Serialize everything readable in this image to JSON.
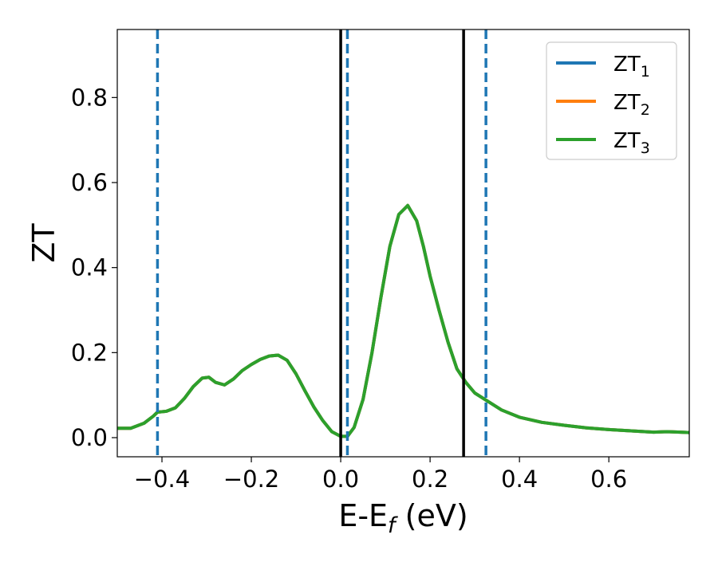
{
  "chart_data": {
    "type": "line",
    "title": "",
    "xlabel": "E-E",
    "xlabel_sub": "f",
    "xlabel_unit": "(eV)",
    "ylabel": "ZT",
    "xlim": [
      -0.5,
      0.78
    ],
    "ylim": [
      -0.045,
      0.96
    ],
    "grid": false,
    "legend_position": "top-right",
    "xticks": [
      -0.4,
      -0.2,
      0.0,
      0.2,
      0.4,
      0.6
    ],
    "xtick_labels": [
      "−0.4",
      "−0.2",
      "0.0",
      "0.2",
      "0.4",
      "0.6"
    ],
    "yticks": [
      0.0,
      0.2,
      0.4,
      0.6,
      0.8
    ],
    "ytick_labels": [
      "0.0",
      "0.2",
      "0.4",
      "0.6",
      "0.8"
    ],
    "x": [
      -0.5,
      -0.47,
      -0.44,
      -0.42,
      -0.41,
      -0.39,
      -0.37,
      -0.35,
      -0.33,
      -0.31,
      -0.295,
      -0.28,
      -0.26,
      -0.24,
      -0.22,
      -0.2,
      -0.18,
      -0.16,
      -0.14,
      -0.12,
      -0.1,
      -0.08,
      -0.06,
      -0.04,
      -0.02,
      0.0,
      0.015,
      0.03,
      0.05,
      0.07,
      0.09,
      0.11,
      0.13,
      0.15,
      0.17,
      0.185,
      0.2,
      0.22,
      0.24,
      0.26,
      0.28,
      0.3,
      0.33,
      0.36,
      0.4,
      0.45,
      0.5,
      0.55,
      0.6,
      0.65,
      0.7,
      0.73,
      0.76,
      0.78
    ],
    "series": [
      {
        "name": "ZT1",
        "color": "#1f77b4",
        "values": [
          0.022,
          0.022,
          0.034,
          0.05,
          0.06,
          0.062,
          0.07,
          0.092,
          0.12,
          0.14,
          0.142,
          0.13,
          0.124,
          0.138,
          0.158,
          0.172,
          0.184,
          0.192,
          0.194,
          0.182,
          0.15,
          0.11,
          0.072,
          0.04,
          0.014,
          0.003,
          0.003,
          0.024,
          0.09,
          0.2,
          0.33,
          0.45,
          0.525,
          0.546,
          0.51,
          0.45,
          0.38,
          0.3,
          0.225,
          0.162,
          0.13,
          0.105,
          0.085,
          0.065,
          0.048,
          0.036,
          0.029,
          0.023,
          0.019,
          0.016,
          0.013,
          0.014,
          0.013,
          0.012
        ]
      },
      {
        "name": "ZT2",
        "color": "#ff7f0e",
        "values": [
          0.022,
          0.022,
          0.034,
          0.05,
          0.06,
          0.062,
          0.07,
          0.092,
          0.12,
          0.14,
          0.142,
          0.13,
          0.124,
          0.138,
          0.158,
          0.172,
          0.184,
          0.192,
          0.194,
          0.182,
          0.15,
          0.11,
          0.072,
          0.04,
          0.014,
          0.003,
          0.003,
          0.024,
          0.09,
          0.2,
          0.33,
          0.45,
          0.525,
          0.546,
          0.51,
          0.45,
          0.38,
          0.3,
          0.225,
          0.162,
          0.13,
          0.105,
          0.085,
          0.065,
          0.048,
          0.036,
          0.029,
          0.023,
          0.019,
          0.016,
          0.013,
          0.014,
          0.013,
          0.012
        ]
      },
      {
        "name": "ZT3",
        "color": "#2ca02c",
        "values": [
          0.022,
          0.022,
          0.034,
          0.05,
          0.06,
          0.062,
          0.07,
          0.092,
          0.12,
          0.14,
          0.142,
          0.13,
          0.124,
          0.138,
          0.158,
          0.172,
          0.184,
          0.192,
          0.194,
          0.182,
          0.15,
          0.11,
          0.072,
          0.04,
          0.014,
          0.003,
          0.003,
          0.024,
          0.09,
          0.2,
          0.33,
          0.45,
          0.525,
          0.546,
          0.51,
          0.45,
          0.38,
          0.3,
          0.225,
          0.162,
          0.13,
          0.105,
          0.085,
          0.065,
          0.048,
          0.036,
          0.029,
          0.023,
          0.019,
          0.016,
          0.013,
          0.014,
          0.013,
          0.012
        ]
      }
    ],
    "legend": [
      {
        "label": "ZT",
        "sub": "1",
        "color": "#1f77b4"
      },
      {
        "label": "ZT",
        "sub": "2",
        "color": "#ff7f0e"
      },
      {
        "label": "ZT",
        "sub": "3",
        "color": "#2ca02c"
      }
    ],
    "vlines_solid": {
      "color": "#000000",
      "x": [
        0.0,
        0.275
      ]
    },
    "vlines_dashed": {
      "color": "#1f77b4",
      "x": [
        -0.41,
        0.015,
        0.325
      ]
    }
  }
}
